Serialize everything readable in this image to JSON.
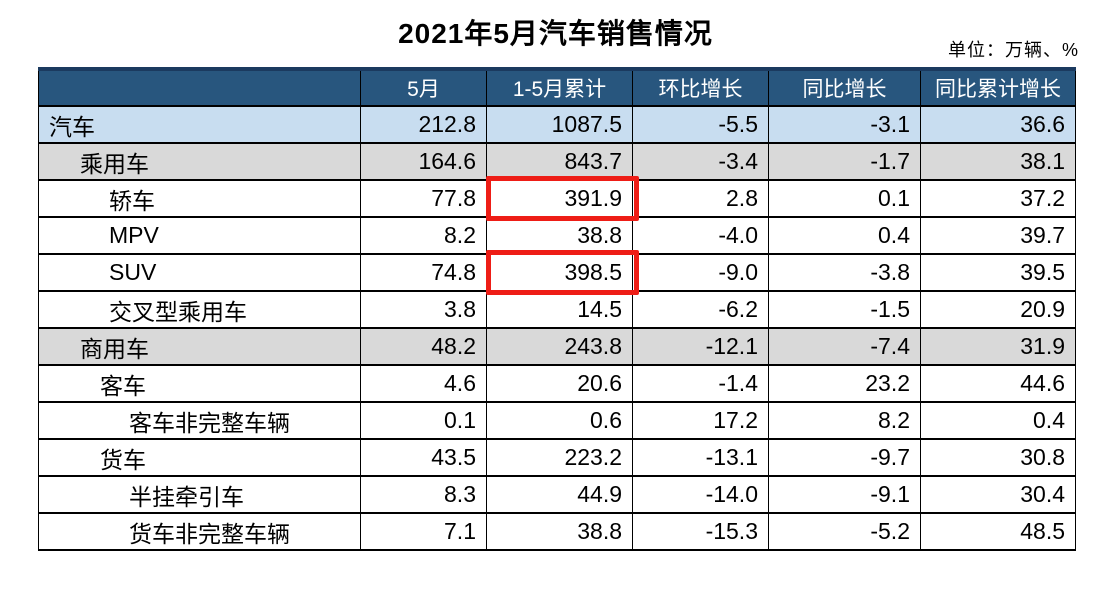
{
  "colors": {
    "header_bg": "#28567E",
    "header_text": "#FFFFFF",
    "row_blue": "#C8DDF0",
    "row_gray": "#D9D9D9",
    "row_white": "#FFFFFF",
    "border": "#000000",
    "table_top_border": "#1B3A5F",
    "highlight_red": "#EE1D16"
  },
  "chart_data": {
    "type": "table",
    "title": "2021年5月汽车销售情况",
    "unit": "单位：万辆、%",
    "columns": [
      "",
      "5月",
      "1-5月累计",
      "环比增长",
      "同比增长",
      "同比累计增长"
    ],
    "rows": [
      {
        "label": "汽车",
        "indent": 0,
        "bg": "blue",
        "values": [
          "212.8",
          "1087.5",
          "-5.5",
          "-3.1",
          "36.6"
        ]
      },
      {
        "label": "乘用车",
        "indent": 1,
        "bg": "gray",
        "values": [
          "164.6",
          "843.7",
          "-3.4",
          "-1.7",
          "38.1"
        ]
      },
      {
        "label": "轿车",
        "indent": 3,
        "bg": "white",
        "values": [
          "77.8",
          "391.9",
          "2.8",
          "0.1",
          "37.2"
        ],
        "highlight": [
          1
        ]
      },
      {
        "label": "MPV",
        "indent": 3,
        "bg": "white",
        "values": [
          "8.2",
          "38.8",
          "-4.0",
          "0.4",
          "39.7"
        ]
      },
      {
        "label": "SUV",
        "indent": 3,
        "bg": "white",
        "values": [
          "74.8",
          "398.5",
          "-9.0",
          "-3.8",
          "39.5"
        ],
        "highlight": [
          1
        ]
      },
      {
        "label": "交叉型乘用车",
        "indent": 3,
        "bg": "white",
        "values": [
          "3.8",
          "14.5",
          "-6.2",
          "-1.5",
          "20.9"
        ]
      },
      {
        "label": "商用车",
        "indent": 1,
        "bg": "gray",
        "values": [
          "48.2",
          "243.8",
          "-12.1",
          "-7.4",
          "31.9"
        ]
      },
      {
        "label": "客车",
        "indent": 2,
        "bg": "white",
        "values": [
          "4.6",
          "20.6",
          "-1.4",
          "23.2",
          "44.6"
        ]
      },
      {
        "label": "客车非完整车辆",
        "indent": 4,
        "bg": "white",
        "values": [
          "0.1",
          "0.6",
          "17.2",
          "8.2",
          "0.4"
        ]
      },
      {
        "label": "货车",
        "indent": 2,
        "bg": "white",
        "values": [
          "43.5",
          "223.2",
          "-13.1",
          "-9.7",
          "30.8"
        ]
      },
      {
        "label": "半挂牵引车",
        "indent": 4,
        "bg": "white",
        "values": [
          "8.3",
          "44.9",
          "-14.0",
          "-9.1",
          "30.4"
        ]
      },
      {
        "label": "货车非完整车辆",
        "indent": 4,
        "bg": "white",
        "values": [
          "7.1",
          "38.8",
          "-15.3",
          "-5.2",
          "48.5"
        ]
      }
    ],
    "highlighted_cells": [
      {
        "row": "轿车",
        "column": "1-5月累计",
        "value": "391.9"
      },
      {
        "row": "SUV",
        "column": "1-5月累计",
        "value": "398.5"
      }
    ]
  }
}
